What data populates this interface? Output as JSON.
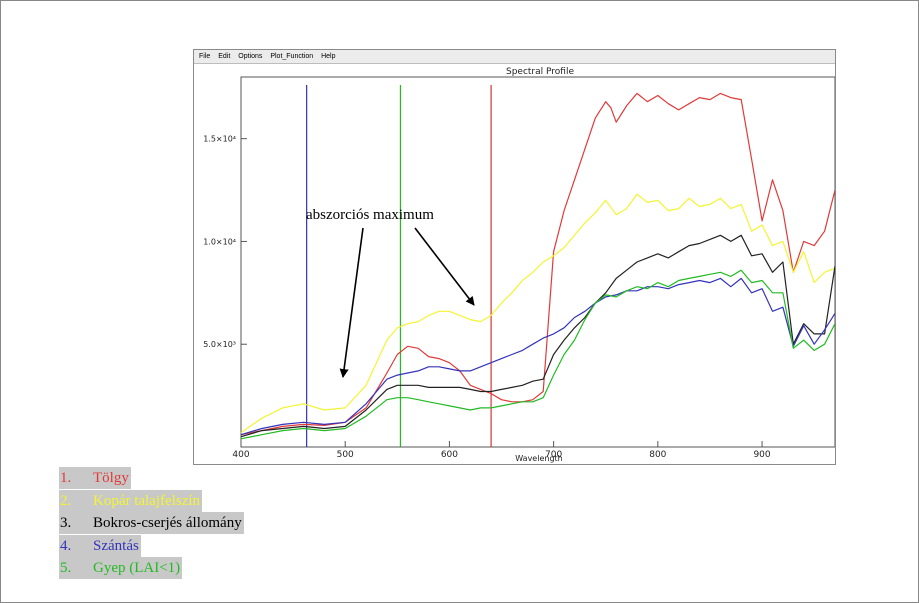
{
  "window": {
    "menu": [
      "File",
      "Edit",
      "Options",
      "Plot_Function",
      "Help"
    ]
  },
  "chart_data": {
    "type": "line",
    "title": "Spectral Profile",
    "xlabel": "Wavelength",
    "ylabel": "",
    "xlim": [
      400,
      970
    ],
    "ylim": [
      0,
      18000
    ],
    "xticks": [
      400,
      500,
      600,
      700,
      800,
      900
    ],
    "yticks": [
      {
        "value": 5000,
        "label": "5.0×10³"
      },
      {
        "value": 10000,
        "label": "1.0×10⁴"
      },
      {
        "value": 15000,
        "label": "1.5×10⁴"
      }
    ],
    "grid": false,
    "vlines": [
      {
        "x": 463,
        "color": "#3333aa"
      },
      {
        "x": 553,
        "color": "#22bb22"
      },
      {
        "x": 640,
        "color": "#dd3333"
      }
    ],
    "annotation": {
      "text": "abszorciós maximum",
      "arrow_targets": [
        [
          492,
          3100
        ],
        [
          628,
          6700
        ]
      ]
    },
    "series": [
      {
        "name": "Tölgy",
        "color": "#e03a3a",
        "x": [
          400,
          420,
          440,
          460,
          480,
          500,
          520,
          540,
          550,
          560,
          570,
          580,
          590,
          600,
          610,
          620,
          630,
          640,
          650,
          660,
          670,
          680,
          690,
          700,
          710,
          720,
          730,
          740,
          750,
          755,
          760,
          765,
          770,
          780,
          790,
          800,
          810,
          820,
          830,
          840,
          850,
          860,
          870,
          880,
          890,
          900,
          910,
          920,
          930,
          940,
          950,
          960,
          970
        ],
        "y": [
          600,
          800,
          1000,
          1100,
          1050,
          1200,
          1900,
          3600,
          4500,
          4900,
          4800,
          4400,
          4300,
          4100,
          3700,
          3000,
          2800,
          2600,
          2300,
          2200,
          2200,
          2300,
          2700,
          9500,
          11500,
          13000,
          14500,
          16000,
          16800,
          16500,
          15800,
          16200,
          16600,
          17200,
          16800,
          17100,
          16700,
          16400,
          16700,
          17000,
          16900,
          17200,
          17000,
          16900,
          14000,
          11000,
          13000,
          11500,
          8500,
          10000,
          9800,
          10500,
          12500
        ]
      },
      {
        "name": "Kopár talajfelszín",
        "color": "#f4f433",
        "x": [
          400,
          420,
          440,
          460,
          480,
          500,
          520,
          540,
          550,
          560,
          570,
          580,
          590,
          600,
          610,
          620,
          630,
          640,
          650,
          660,
          670,
          680,
          690,
          700,
          710,
          720,
          730,
          740,
          750,
          760,
          770,
          780,
          790,
          800,
          810,
          820,
          830,
          840,
          850,
          860,
          870,
          880,
          890,
          900,
          910,
          920,
          930,
          940,
          950,
          960,
          970
        ],
        "y": [
          700,
          1400,
          1900,
          2100,
          1800,
          1900,
          3000,
          5200,
          5800,
          6000,
          6100,
          6400,
          6600,
          6600,
          6400,
          6200,
          6100,
          6400,
          7000,
          7500,
          8100,
          8500,
          9000,
          9300,
          9700,
          10300,
          10900,
          11400,
          12000,
          11300,
          11600,
          12300,
          11900,
          12000,
          11500,
          11600,
          12100,
          11700,
          11800,
          12100,
          11600,
          11800,
          10500,
          10800,
          9800,
          10000,
          8500,
          9500,
          8000,
          8500,
          8700
        ]
      },
      {
        "name": "Bokros-cserjés állomány",
        "color": "#222222",
        "x": [
          400,
          420,
          440,
          460,
          480,
          500,
          520,
          540,
          550,
          560,
          570,
          580,
          590,
          600,
          610,
          620,
          630,
          640,
          650,
          660,
          670,
          680,
          690,
          700,
          710,
          720,
          730,
          740,
          750,
          760,
          770,
          780,
          790,
          800,
          810,
          820,
          830,
          840,
          850,
          860,
          870,
          880,
          890,
          900,
          910,
          920,
          930,
          940,
          950,
          960,
          970
        ],
        "y": [
          500,
          800,
          900,
          1000,
          900,
          1000,
          1800,
          2800,
          3000,
          3000,
          3000,
          2900,
          2900,
          2900,
          2900,
          2800,
          2700,
          2700,
          2800,
          2900,
          3000,
          3200,
          3300,
          4500,
          5200,
          5800,
          6300,
          7000,
          7500,
          8200,
          8600,
          9000,
          9200,
          9400,
          9200,
          9500,
          9800,
          9900,
          10100,
          10300,
          10000,
          10300,
          9300,
          9400,
          8500,
          9000,
          5000,
          6000,
          5500,
          5500,
          8800
        ]
      },
      {
        "name": "Szántás",
        "color": "#3333bb",
        "x": [
          400,
          420,
          440,
          460,
          480,
          500,
          520,
          540,
          550,
          560,
          570,
          580,
          590,
          600,
          610,
          620,
          630,
          640,
          650,
          660,
          670,
          680,
          690,
          700,
          710,
          720,
          730,
          740,
          750,
          760,
          770,
          780,
          790,
          800,
          810,
          820,
          830,
          840,
          850,
          860,
          870,
          880,
          890,
          900,
          910,
          920,
          930,
          940,
          950,
          960,
          970
        ],
        "y": [
          600,
          900,
          1100,
          1200,
          1100,
          1200,
          2100,
          3300,
          3500,
          3600,
          3700,
          3900,
          3900,
          3800,
          3700,
          3700,
          3900,
          4100,
          4300,
          4500,
          4700,
          5000,
          5300,
          5500,
          5800,
          6300,
          6600,
          7000,
          7300,
          7400,
          7600,
          7600,
          7800,
          7800,
          7700,
          7900,
          8000,
          8100,
          8000,
          8200,
          7800,
          8200,
          7500,
          7700,
          6600,
          6800,
          4900,
          5900,
          5000,
          5700,
          6500
        ]
      },
      {
        "name": "Gyep (LAI<1)",
        "color": "#22bb22",
        "x": [
          400,
          420,
          440,
          460,
          480,
          500,
          520,
          540,
          550,
          560,
          570,
          580,
          590,
          600,
          610,
          620,
          630,
          640,
          650,
          660,
          670,
          680,
          690,
          700,
          710,
          720,
          730,
          740,
          750,
          760,
          770,
          780,
          790,
          800,
          810,
          820,
          830,
          840,
          850,
          860,
          870,
          880,
          890,
          900,
          910,
          920,
          930,
          940,
          950,
          960,
          970
        ],
        "y": [
          400,
          600,
          800,
          900,
          800,
          900,
          1500,
          2300,
          2400,
          2400,
          2300,
          2200,
          2100,
          2000,
          1900,
          1800,
          1900,
          1900,
          2000,
          2100,
          2200,
          2200,
          2400,
          3500,
          4500,
          5200,
          6200,
          7000,
          7400,
          7300,
          7600,
          7800,
          7700,
          8000,
          7800,
          8100,
          8200,
          8300,
          8400,
          8500,
          8300,
          8600,
          8000,
          8100,
          7500,
          7500,
          4800,
          5200,
          4700,
          5000,
          6000
        ]
      }
    ]
  },
  "legend": [
    {
      "num": "1.",
      "label": "Tölgy",
      "color": "#e03a3a"
    },
    {
      "num": "2.",
      "label": "Kopár talajfelszín",
      "color": "#f4f433"
    },
    {
      "num": "3.",
      "label": "Bokros-cserjés állomány",
      "color": "#000000"
    },
    {
      "num": "4.",
      "label": "Szántás",
      "color": "#3333bb"
    },
    {
      "num": "5.",
      "label": "Gyep (LAI<1)",
      "color": "#22bb22"
    }
  ]
}
